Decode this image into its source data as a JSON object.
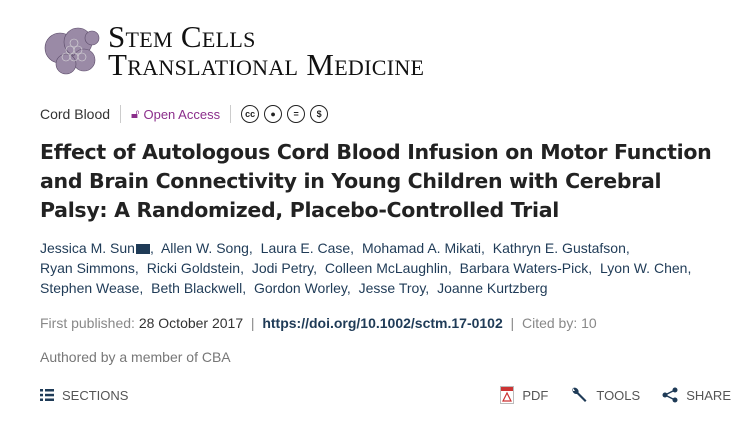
{
  "journal": {
    "line1": "Stem Cells",
    "line2": "Translational Medicine"
  },
  "meta": {
    "category": "Cord Blood",
    "access": "Open Access",
    "licenses": [
      "cc-icon",
      "by-icon",
      "nd-icon",
      "nc-icon"
    ]
  },
  "title": "Effect of Autologous Cord Blood Infusion on Motor Function and Brain Connectivity in Young Children with Cerebral Palsy: A Randomized, Placebo-Controlled Trial",
  "authors": [
    "Jessica M. Sun",
    "Allen W. Song",
    "Laura E. Case",
    "Mohamad A. Mikati",
    "Kathryn E. Gustafson",
    "Ryan Simmons",
    "Ricki Goldstein",
    "Jodi Petry",
    "Colleen McLaughlin",
    "Barbara Waters-Pick",
    "Lyon W. Chen",
    "Stephen Wease",
    "Beth Blackwell",
    "Gordon Worley",
    "Jesse Troy",
    "Joanne Kurtzberg"
  ],
  "publication": {
    "label": "First published:",
    "date": "28 October 2017",
    "doi": "https://doi.org/10.1002/sctm.17-0102",
    "cited": "Cited by: 10"
  },
  "note": "Authored by a member of CBA",
  "toolbar": {
    "sections": "SECTIONS",
    "pdf": "PDF",
    "tools": "TOOLS",
    "share": "SHARE"
  },
  "colors": {
    "accent": "#8b2e8b",
    "author": "#1f3b57"
  }
}
